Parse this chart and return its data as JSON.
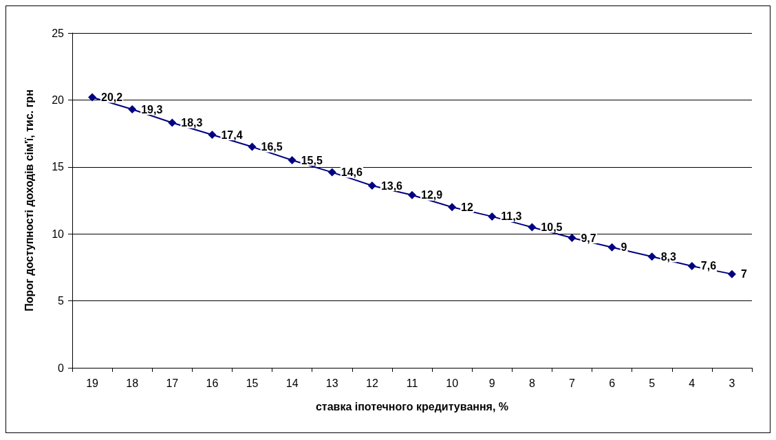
{
  "chart_data": {
    "type": "line",
    "xlabel": "ставка іпотечного кредитування, %",
    "ylabel": "Порог доступності доходів сім'ї, тис. грн",
    "categories": [
      "19",
      "18",
      "17",
      "16",
      "15",
      "14",
      "13",
      "12",
      "11",
      "10",
      "9",
      "8",
      "7",
      "6",
      "5",
      "4",
      "3"
    ],
    "series": [
      {
        "color": "#000080",
        "values": [
          20.2,
          19.3,
          18.3,
          17.4,
          16.5,
          15.5,
          14.6,
          13.6,
          12.9,
          12,
          11.3,
          10.5,
          9.7,
          9,
          8.3,
          7.6,
          7
        ],
        "value_labels": [
          "20,2",
          "19,3",
          "18,3",
          "17,4",
          "16,5",
          "15,5",
          "14,6",
          "13,6",
          "12,9",
          "12",
          "11,3",
          "10,5",
          "9,7",
          "9",
          "8,3",
          "7,6",
          "7"
        ]
      }
    ],
    "ylim": [
      0,
      25
    ],
    "yticks": [
      0,
      5,
      10,
      15,
      20,
      25
    ],
    "grid": "y",
    "marker": "diamond",
    "line_style": "solid"
  }
}
